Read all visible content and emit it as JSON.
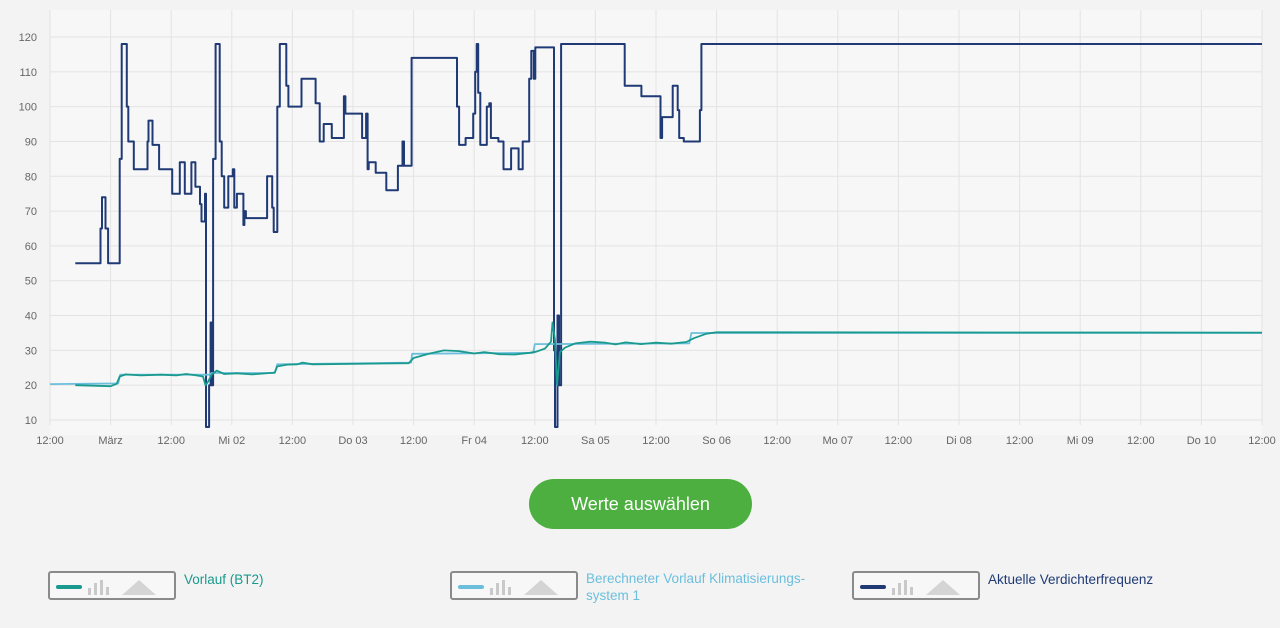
{
  "chart_data": {
    "type": "line",
    "ylim": [
      10,
      120
    ],
    "y_ticks": [
      10,
      20,
      30,
      40,
      50,
      60,
      70,
      80,
      90,
      100,
      110,
      120
    ],
    "x_range_hours": [
      -12,
      228
    ],
    "x_ticks": [
      {
        "h": -12,
        "label": "12:00"
      },
      {
        "h": 0,
        "label": "März"
      },
      {
        "h": 12,
        "label": "12:00"
      },
      {
        "h": 24,
        "label": "Mi 02"
      },
      {
        "h": 36,
        "label": "12:00"
      },
      {
        "h": 48,
        "label": "Do 03"
      },
      {
        "h": 60,
        "label": "12:00"
      },
      {
        "h": 72,
        "label": "Fr 04"
      },
      {
        "h": 84,
        "label": "12:00"
      },
      {
        "h": 96,
        "label": "Sa 05"
      },
      {
        "h": 108,
        "label": "12:00"
      },
      {
        "h": 120,
        "label": "So 06"
      },
      {
        "h": 132,
        "label": "12:00"
      },
      {
        "h": 144,
        "label": "Mo 07"
      },
      {
        "h": 156,
        "label": "12:00"
      },
      {
        "h": 168,
        "label": "Di 08"
      },
      {
        "h": 180,
        "label": "12:00"
      },
      {
        "h": 192,
        "label": "Mi 09"
      },
      {
        "h": 204,
        "label": "12:00"
      },
      {
        "h": 216,
        "label": "Do 10"
      },
      {
        "h": 228,
        "label": "12:00"
      }
    ],
    "grid": true,
    "series": [
      {
        "name": "Aktuelle Verdichterfrequenz",
        "color": "#1f3a75",
        "width": 2,
        "step": true,
        "points": [
          [
            -7,
            55
          ],
          [
            -2.3,
            55
          ],
          [
            -2,
            65
          ],
          [
            -1.7,
            74
          ],
          [
            -1.3,
            74
          ],
          [
            -1,
            65
          ],
          [
            -0.5,
            55
          ],
          [
            1.5,
            55
          ],
          [
            1.8,
            85
          ],
          [
            2.2,
            118
          ],
          [
            3,
            118
          ],
          [
            3.2,
            100
          ],
          [
            3.5,
            90
          ],
          [
            4.3,
            90
          ],
          [
            4.6,
            82
          ],
          [
            7,
            82
          ],
          [
            7.3,
            90
          ],
          [
            7.5,
            96
          ],
          [
            8,
            96
          ],
          [
            8.3,
            89
          ],
          [
            9.3,
            89
          ],
          [
            9.6,
            82
          ],
          [
            11.3,
            82
          ],
          [
            12,
            82
          ],
          [
            12.2,
            75
          ],
          [
            13.5,
            75
          ],
          [
            13.7,
            84
          ],
          [
            14.5,
            84
          ],
          [
            14.7,
            75
          ],
          [
            15.7,
            75
          ],
          [
            16,
            84
          ],
          [
            16.5,
            84
          ],
          [
            16.8,
            77
          ],
          [
            17.5,
            77
          ],
          [
            17.7,
            72
          ],
          [
            18,
            67
          ],
          [
            18.5,
            67
          ],
          [
            18.7,
            75
          ],
          [
            18.9,
            8
          ],
          [
            19.3,
            8
          ],
          [
            19.5,
            20
          ],
          [
            19.8,
            38
          ],
          [
            20,
            20
          ],
          [
            20.3,
            85
          ],
          [
            20.8,
            118
          ],
          [
            21.4,
            118
          ],
          [
            21.6,
            90
          ],
          [
            22,
            80
          ],
          [
            22.5,
            71
          ],
          [
            23,
            71
          ],
          [
            23.3,
            80
          ],
          [
            24.2,
            82
          ],
          [
            24.5,
            71
          ],
          [
            25,
            75
          ],
          [
            26,
            75
          ],
          [
            26.3,
            66
          ],
          [
            26.5,
            70
          ],
          [
            26.8,
            68
          ],
          [
            30.7,
            68
          ],
          [
            31,
            80
          ],
          [
            31.7,
            80
          ],
          [
            32,
            71
          ],
          [
            32.3,
            64
          ],
          [
            32.7,
            64
          ],
          [
            33,
            100
          ],
          [
            33.5,
            118
          ],
          [
            34.5,
            118
          ],
          [
            34.8,
            106
          ],
          [
            35.2,
            100
          ],
          [
            37.5,
            100
          ],
          [
            37.8,
            108
          ],
          [
            40.3,
            108
          ],
          [
            40.6,
            101
          ],
          [
            41.1,
            101
          ],
          [
            41.4,
            90
          ],
          [
            41.9,
            90
          ],
          [
            42.2,
            95
          ],
          [
            43.5,
            95
          ],
          [
            43.8,
            91
          ],
          [
            46,
            91
          ],
          [
            46.2,
            103
          ],
          [
            46.5,
            98
          ],
          [
            49.5,
            98
          ],
          [
            49.8,
            91
          ],
          [
            50.3,
            91
          ],
          [
            50.6,
            98
          ],
          [
            50.9,
            82
          ],
          [
            51.1,
            84
          ],
          [
            52.2,
            84
          ],
          [
            52.5,
            81
          ],
          [
            54.3,
            81
          ],
          [
            54.6,
            76
          ],
          [
            56.6,
            76
          ],
          [
            56.9,
            83
          ],
          [
            57.5,
            83
          ],
          [
            57.8,
            90
          ],
          [
            58.1,
            83
          ],
          [
            59.3,
            83
          ],
          [
            59.6,
            114
          ],
          [
            68.3,
            114
          ],
          [
            68.6,
            100
          ],
          [
            69,
            89
          ],
          [
            70,
            89
          ],
          [
            70.3,
            91
          ],
          [
            71.5,
            91
          ],
          [
            71.8,
            98
          ],
          [
            72.2,
            110
          ],
          [
            72.5,
            118
          ],
          [
            72.8,
            104
          ],
          [
            73.2,
            89
          ],
          [
            74.2,
            89
          ],
          [
            74.5,
            100
          ],
          [
            75,
            101
          ],
          [
            75.3,
            91
          ],
          [
            76.5,
            91
          ],
          [
            76.8,
            90
          ],
          [
            77.5,
            90
          ],
          [
            77.8,
            82
          ],
          [
            79,
            82
          ],
          [
            79.3,
            88
          ],
          [
            80.5,
            88
          ],
          [
            80.8,
            82
          ],
          [
            81.3,
            82
          ],
          [
            81.6,
            90
          ],
          [
            82.6,
            90
          ],
          [
            82.9,
            108
          ],
          [
            83.3,
            116
          ],
          [
            83.8,
            108
          ],
          [
            84.1,
            117
          ],
          [
            87.5,
            117
          ],
          [
            87.8,
            30
          ],
          [
            88,
            8
          ],
          [
            88.3,
            8
          ],
          [
            88.5,
            40
          ],
          [
            88.8,
            20
          ],
          [
            89.2,
            118
          ],
          [
            101.5,
            118
          ],
          [
            101.8,
            106
          ],
          [
            104.8,
            106
          ],
          [
            105.1,
            103
          ],
          [
            108.6,
            103
          ],
          [
            108.9,
            91
          ],
          [
            109.2,
            97
          ],
          [
            111,
            97
          ],
          [
            111.3,
            106
          ],
          [
            112,
            106
          ],
          [
            112.3,
            99
          ],
          [
            112.6,
            91
          ],
          [
            113.2,
            91
          ],
          [
            113.5,
            90
          ],
          [
            116.4,
            90
          ],
          [
            116.7,
            99
          ],
          [
            117,
            118
          ],
          [
            228,
            118
          ]
        ]
      },
      {
        "name": "Berechneter Vorlauf Klimatisierungs-system 1",
        "color": "#6bbfdd",
        "width": 1.8,
        "step": false,
        "points": [
          [
            -12,
            20.3
          ],
          [
            1.5,
            20.5
          ],
          [
            1.9,
            23
          ],
          [
            19.5,
            23
          ],
          [
            20,
            23.5
          ],
          [
            32.5,
            23.5
          ],
          [
            33,
            26
          ],
          [
            59.5,
            26.5
          ],
          [
            59.7,
            29
          ],
          [
            83.7,
            29.3
          ],
          [
            84,
            31.8
          ],
          [
            114.6,
            32
          ],
          [
            115,
            35
          ],
          [
            228,
            35
          ]
        ]
      },
      {
        "name": "Vorlauf (BT2)",
        "color": "#1a9a8e",
        "width": 1.8,
        "step": false,
        "points": [
          [
            -7,
            20
          ],
          [
            0,
            19.7
          ],
          [
            1.2,
            20.4
          ],
          [
            1.8,
            22.5
          ],
          [
            3,
            23.1
          ],
          [
            6,
            22.8
          ],
          [
            10,
            23
          ],
          [
            13,
            22.8
          ],
          [
            15,
            23.2
          ],
          [
            17,
            22.8
          ],
          [
            18.3,
            22.5
          ],
          [
            18.8,
            20
          ],
          [
            19.3,
            21
          ],
          [
            20,
            23
          ],
          [
            21,
            24.2
          ],
          [
            22.5,
            23.2
          ],
          [
            25,
            23.4
          ],
          [
            28,
            23.1
          ],
          [
            32.5,
            23.6
          ],
          [
            33,
            25.4
          ],
          [
            35,
            25.9
          ],
          [
            37,
            26
          ],
          [
            38,
            26.5
          ],
          [
            40,
            26
          ],
          [
            59,
            26.3
          ],
          [
            60,
            27.8
          ],
          [
            63,
            29
          ],
          [
            66,
            30
          ],
          [
            69,
            29.8
          ],
          [
            72,
            29.1
          ],
          [
            74,
            29.5
          ],
          [
            77,
            28.9
          ],
          [
            80,
            28.8
          ],
          [
            83,
            29.3
          ],
          [
            84.2,
            29.6
          ],
          [
            86,
            30.5
          ],
          [
            87.2,
            32.5
          ],
          [
            87.5,
            38
          ],
          [
            88,
            33
          ],
          [
            88.4,
            20
          ],
          [
            89,
            29.5
          ],
          [
            90,
            30.8
          ],
          [
            92,
            32
          ],
          [
            95,
            32.5
          ],
          [
            98,
            32.2
          ],
          [
            100,
            31.7
          ],
          [
            102,
            32.3
          ],
          [
            105,
            31.8
          ],
          [
            108,
            32.2
          ],
          [
            111,
            31.9
          ],
          [
            114,
            32.4
          ],
          [
            115.5,
            33.5
          ],
          [
            118,
            34.8
          ],
          [
            120,
            35.2
          ],
          [
            228,
            35.1
          ]
        ]
      }
    ]
  },
  "select_button": {
    "label": "Werte auswählen"
  },
  "legend": [
    {
      "label": "Vorlauf (BT2)",
      "color": "#1a9a8e"
    },
    {
      "label": "Berechneter Vorlauf Klimatisierungs-",
      "label2": "system 1",
      "color": "#6bbfdd"
    },
    {
      "label": "Aktuelle Verdichterfrequenz",
      "color": "#1f3a75"
    }
  ]
}
